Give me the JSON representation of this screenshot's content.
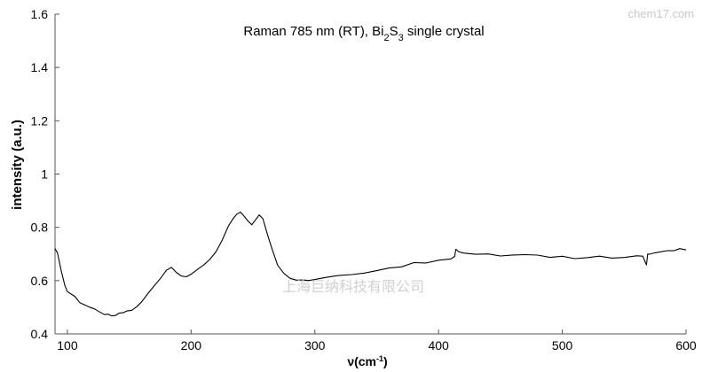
{
  "watermarks": {
    "site": "chem17.com",
    "company": "上海巨纳科技有限公司"
  },
  "chart_data": {
    "type": "line",
    "title": {
      "pre": "Raman 785 nm (RT), Bi",
      "sub1": "2",
      "mid": "S",
      "sub2": "3",
      "post": " single crystal"
    },
    "xlabel": {
      "pre": "ν(cm",
      "sup": "-1",
      "post": ")"
    },
    "ylabel": "intensity (a.u.)",
    "xlim": [
      90,
      600
    ],
    "ylim": [
      0.4,
      1.6
    ],
    "xticks": [
      100,
      200,
      300,
      400,
      500,
      600
    ],
    "yticks": [
      0.4,
      0.6,
      0.8,
      1,
      1.2,
      1.4,
      1.6
    ],
    "ytick_labels": [
      "0.4",
      "0.6",
      "0.8",
      "1",
      "1.2",
      "1.4",
      "1.6"
    ],
    "grid": false,
    "line_color": "#000000",
    "series": [
      {
        "x": [
          90,
          92,
          95,
          98,
          100,
          103,
          106,
          110,
          114,
          118,
          122,
          126,
          130,
          133,
          136,
          139,
          142,
          145,
          148,
          152,
          156,
          160,
          165,
          170,
          175,
          180,
          184,
          188,
          192,
          196,
          200,
          205,
          210,
          215,
          220,
          225,
          230,
          234,
          237,
          240,
          243,
          246,
          249,
          252,
          255,
          258,
          262,
          266,
          270,
          275,
          280,
          285,
          290,
          295,
          300,
          310,
          320,
          330,
          340,
          350,
          360,
          370,
          380,
          390,
          400,
          410,
          413,
          414,
          416,
          420,
          430,
          440,
          450,
          460,
          470,
          480,
          490,
          500,
          510,
          520,
          530,
          540,
          550,
          560,
          565,
          568,
          569,
          570,
          575,
          580,
          585,
          590,
          595,
          600
        ],
        "y": [
          0.72,
          0.7,
          0.64,
          0.58,
          0.56,
          0.55,
          0.54,
          0.52,
          0.51,
          0.5,
          0.49,
          0.48,
          0.475,
          0.47,
          0.465,
          0.47,
          0.475,
          0.48,
          0.485,
          0.49,
          0.5,
          0.52,
          0.55,
          0.58,
          0.61,
          0.64,
          0.65,
          0.635,
          0.62,
          0.615,
          0.62,
          0.64,
          0.66,
          0.68,
          0.71,
          0.75,
          0.8,
          0.83,
          0.85,
          0.855,
          0.84,
          0.82,
          0.81,
          0.83,
          0.845,
          0.83,
          0.77,
          0.71,
          0.66,
          0.63,
          0.61,
          0.605,
          0.6,
          0.6,
          0.605,
          0.61,
          0.62,
          0.625,
          0.63,
          0.64,
          0.65,
          0.655,
          0.665,
          0.67,
          0.68,
          0.685,
          0.69,
          0.72,
          0.71,
          0.705,
          0.7,
          0.7,
          0.695,
          0.7,
          0.7,
          0.695,
          0.69,
          0.69,
          0.685,
          0.69,
          0.69,
          0.685,
          0.69,
          0.695,
          0.695,
          0.66,
          0.7,
          0.7,
          0.705,
          0.705,
          0.71,
          0.715,
          0.72,
          0.715
        ]
      }
    ]
  }
}
